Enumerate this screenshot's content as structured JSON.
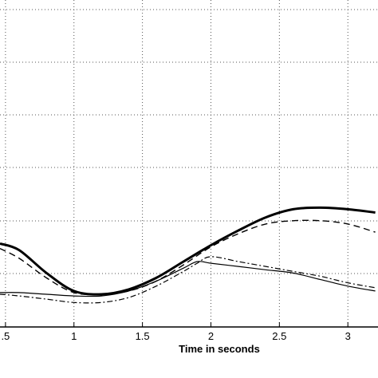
{
  "chart_data": {
    "type": "line",
    "xlabel": "Time in seconds",
    "ylabel": "",
    "title": "",
    "xlim": [
      0.46,
      3.22
    ],
    "ylim": [
      0,
      1
    ],
    "grid": true,
    "xticks": [
      0.5,
      1,
      1.5,
      2,
      2.5,
      3
    ],
    "xtick_labels": [
      ".5",
      "1",
      "1.5",
      "2",
      "2.5",
      "3"
    ],
    "series": [
      {
        "style": "thick-solid",
        "x": [
          0.46,
          0.6,
          0.8,
          1.0,
          1.2,
          1.4,
          1.6,
          1.8,
          2.0,
          2.2,
          2.4,
          2.6,
          2.8,
          3.0,
          3.2
        ],
        "y": [
          0.255,
          0.235,
          0.165,
          0.11,
          0.1,
          0.115,
          0.15,
          0.2,
          0.25,
          0.295,
          0.335,
          0.36,
          0.365,
          0.36,
          0.35
        ]
      },
      {
        "style": "dashed",
        "x": [
          0.46,
          0.6,
          0.8,
          1.0,
          1.2,
          1.4,
          1.6,
          1.8,
          2.0,
          2.2,
          2.4,
          2.6,
          2.8,
          3.0,
          3.2
        ],
        "y": [
          0.24,
          0.21,
          0.15,
          0.105,
          0.1,
          0.11,
          0.14,
          0.19,
          0.245,
          0.285,
          0.315,
          0.325,
          0.325,
          0.315,
          0.29
        ]
      },
      {
        "style": "dash-dot",
        "x": [
          0.46,
          0.6,
          0.8,
          1.0,
          1.2,
          1.4,
          1.6,
          1.8,
          1.9,
          2.0,
          2.2,
          2.4,
          2.6,
          2.8,
          3.0,
          3.2
        ],
        "y": [
          0.1,
          0.095,
          0.085,
          0.075,
          0.075,
          0.09,
          0.125,
          0.17,
          0.195,
          0.215,
          0.2,
          0.185,
          0.17,
          0.155,
          0.135,
          0.12
        ]
      },
      {
        "style": "thin-solid",
        "x": [
          0.46,
          0.6,
          0.8,
          1.0,
          1.2,
          1.4,
          1.6,
          1.8,
          1.9,
          2.0,
          2.2,
          2.4,
          2.6,
          2.8,
          3.0,
          3.2
        ],
        "y": [
          0.105,
          0.105,
          0.1,
          0.095,
          0.095,
          0.11,
          0.14,
          0.18,
          0.2,
          0.195,
          0.185,
          0.175,
          0.165,
          0.145,
          0.125,
          0.11
        ]
      }
    ]
  }
}
